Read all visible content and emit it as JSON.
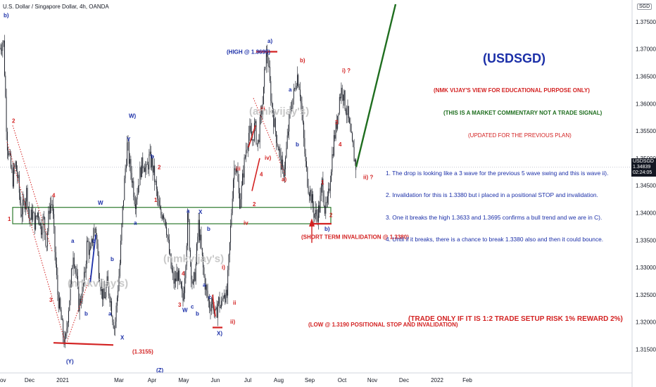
{
  "header": {
    "title": "U.S. Dollar / Singapore Dollar, 4h, OANDA",
    "currency_badge": "SGD"
  },
  "price_tag": {
    "symbol": "USDSGD",
    "price": "1.34839",
    "countdown": "02:24:05"
  },
  "colors": {
    "candles": "#131722",
    "blue": "#1b2fa8",
    "red": "#d32222",
    "green": "#1f6e1f",
    "box": "#2d7a2d",
    "grid": "#b8bcc8"
  },
  "chart_data": {
    "type": "candlestick",
    "y_ticks": [
      1.315,
      1.32,
      1.325,
      1.33,
      1.335,
      1.34,
      1.345,
      1.35,
      1.355,
      1.36,
      1.365,
      1.37,
      1.375
    ],
    "x_ticks": [
      "Dec",
      "2021",
      "Mar",
      "Apr",
      "May",
      "Jun",
      "Jul",
      "Aug",
      "Sep",
      "Oct",
      "Nov",
      "Dec",
      "2022",
      "Feb"
    ],
    "edge_tick": "ov",
    "ylim": [
      1.3112,
      1.3782
    ],
    "current_price": 1.34839,
    "invalidation_zone": [
      1.338,
      1.341
    ],
    "price_path": [
      [
        0,
        1.3702
      ],
      [
        5,
        1.3718
      ],
      [
        7,
        1.364
      ],
      [
        10,
        1.353
      ],
      [
        14,
        1.3495
      ],
      [
        18,
        1.346
      ],
      [
        22,
        1.349
      ],
      [
        26,
        1.3455
      ],
      [
        30,
        1.34
      ],
      [
        34,
        1.3415
      ],
      [
        38,
        1.344
      ],
      [
        42,
        1.3385
      ],
      [
        46,
        1.34
      ],
      [
        50,
        1.338
      ],
      [
        54,
        1.3405
      ],
      [
        58,
        1.337
      ],
      [
        62,
        1.339
      ],
      [
        66,
        1.334
      ],
      [
        70,
        1.341
      ],
      [
        74,
        1.342
      ],
      [
        78,
        1.333
      ],
      [
        82,
        1.325
      ],
      [
        86,
        1.3215
      ],
      [
        90,
        1.3172
      ],
      [
        93,
        1.3158
      ],
      [
        96,
        1.321
      ],
      [
        100,
        1.326
      ],
      [
        104,
        1.333
      ],
      [
        108,
        1.329
      ],
      [
        112,
        1.323
      ],
      [
        116,
        1.325
      ],
      [
        120,
        1.328
      ],
      [
        124,
        1.335
      ],
      [
        128,
        1.332
      ],
      [
        132,
        1.336
      ],
      [
        136,
        1.3375
      ],
      [
        140,
        1.33
      ],
      [
        144,
        1.326
      ],
      [
        148,
        1.324
      ],
      [
        152,
        1.327
      ],
      [
        156,
        1.325
      ],
      [
        160,
        1.321
      ],
      [
        163,
        1.3188
      ],
      [
        166,
        1.324
      ],
      [
        170,
        1.33
      ],
      [
        174,
        1.34
      ],
      [
        178,
        1.348
      ],
      [
        181,
        1.3527
      ],
      [
        184,
        1.349
      ],
      [
        188,
        1.346
      ],
      [
        192,
        1.342
      ],
      [
        196,
        1.345
      ],
      [
        200,
        1.348
      ],
      [
        204,
        1.3495
      ],
      [
        208,
        1.3475
      ],
      [
        212,
        1.35
      ],
      [
        216,
        1.349
      ],
      [
        220,
        1.346
      ],
      [
        224,
        1.342
      ],
      [
        228,
        1.3395
      ],
      [
        232,
        1.3405
      ],
      [
        236,
        1.338
      ],
      [
        240,
        1.333
      ],
      [
        244,
        1.329
      ],
      [
        248,
        1.327
      ],
      [
        252,
        1.329
      ],
      [
        256,
        1.326
      ],
      [
        260,
        1.324
      ],
      [
        264,
        1.332
      ],
      [
        267,
        1.34
      ],
      [
        270,
        1.332
      ],
      [
        274,
        1.326
      ],
      [
        278,
        1.33
      ],
      [
        282,
        1.338
      ],
      [
        286,
        1.333
      ],
      [
        290,
        1.328
      ],
      [
        294,
        1.325
      ],
      [
        298,
        1.323
      ],
      [
        302,
        1.324
      ],
      [
        306,
        1.3205
      ],
      [
        310,
        1.324
      ],
      [
        314,
        1.3225
      ],
      [
        318,
        1.326
      ],
      [
        322,
        1.324
      ],
      [
        325,
        1.331
      ],
      [
        328,
        1.338
      ],
      [
        331,
        1.346
      ],
      [
        334,
        1.3495
      ],
      [
        337,
        1.347
      ],
      [
        340,
        1.342
      ],
      [
        343,
        1.344
      ],
      [
        346,
        1.348
      ],
      [
        350,
        1.352
      ],
      [
        354,
        1.355
      ],
      [
        358,
        1.353
      ],
      [
        362,
        1.356
      ],
      [
        366,
        1.352
      ],
      [
        370,
        1.357
      ],
      [
        374,
        1.361
      ],
      [
        377,
        1.368
      ],
      [
        380,
        1.3692
      ],
      [
        383,
        1.364
      ],
      [
        386,
        1.36
      ],
      [
        390,
        1.356
      ],
      [
        394,
        1.353
      ],
      [
        398,
        1.35
      ],
      [
        402,
        1.347
      ],
      [
        406,
        1.35
      ],
      [
        410,
        1.356
      ],
      [
        414,
        1.36
      ],
      [
        418,
        1.362
      ],
      [
        422,
        1.3655
      ],
      [
        426,
        1.363
      ],
      [
        430,
        1.356
      ],
      [
        434,
        1.349
      ],
      [
        438,
        1.345
      ],
      [
        442,
        1.343
      ],
      [
        446,
        1.34
      ],
      [
        450,
        1.3395
      ],
      [
        454,
        1.341
      ],
      [
        458,
        1.346
      ],
      [
        462,
        1.34
      ],
      [
        466,
        1.342
      ],
      [
        470,
        1.348
      ],
      [
        474,
        1.353
      ],
      [
        478,
        1.356
      ],
      [
        482,
        1.361
      ],
      [
        486,
        1.363
      ],
      [
        490,
        1.36
      ],
      [
        494,
        1.358
      ],
      [
        498,
        1.354
      ],
      [
        502,
        1.351
      ],
      [
        506,
        1.3484
      ]
    ]
  },
  "wave_labels": [
    {
      "text": "b)",
      "color": "blue",
      "x": 5,
      "p": 1.3758
    },
    {
      "text": "2",
      "color": "red",
      "x": 17,
      "p": 1.3565
    },
    {
      "text": "1",
      "color": "red",
      "x": 11,
      "p": 1.3385
    },
    {
      "text": "4",
      "color": "red",
      "x": 74,
      "p": 1.3428
    },
    {
      "text": "3",
      "color": "red",
      "x": 70,
      "p": 1.3237
    },
    {
      "text": "W",
      "color": "blue",
      "x": 139,
      "p": 1.3415
    },
    {
      "text": "a",
      "color": "blue",
      "x": 101,
      "p": 1.3345
    },
    {
      "text": "b",
      "color": "blue",
      "x": 120,
      "p": 1.3212
    },
    {
      "text": "c",
      "color": "blue",
      "x": 131,
      "p": 1.3345
    },
    {
      "text": "b",
      "color": "blue",
      "x": 157,
      "p": 1.3312
    },
    {
      "text": "a",
      "color": "blue",
      "x": 154,
      "p": 1.3212
    },
    {
      "text": "X",
      "color": "blue",
      "x": 171,
      "p": 1.3168
    },
    {
      "text": "(Y)",
      "color": "blue",
      "x": 94,
      "p": 1.3124
    },
    {
      "text": "(1.3155)",
      "color": "red",
      "x": 188,
      "p": 1.3142
    },
    {
      "text": "(Z)",
      "color": "blue",
      "x": 222,
      "p": 1.3108
    },
    {
      "text": "W)",
      "color": "blue",
      "x": 183,
      "p": 1.3574
    },
    {
      "text": "Y",
      "color": "blue",
      "x": 180,
      "p": 1.3531
    },
    {
      "text": "b",
      "color": "blue",
      "x": 214,
      "p": 1.35
    },
    {
      "text": "2",
      "color": "red",
      "x": 224,
      "p": 1.348
    },
    {
      "text": "1",
      "color": "red",
      "x": 219,
      "p": 1.342
    },
    {
      "text": "a",
      "color": "blue",
      "x": 190,
      "p": 1.3378
    },
    {
      "text": "a",
      "color": "blue",
      "x": 265,
      "p": 1.34
    },
    {
      "text": "X",
      "color": "blue",
      "x": 282,
      "p": 1.3398
    },
    {
      "text": "b",
      "color": "blue",
      "x": 294,
      "p": 1.3367
    },
    {
      "text": "4",
      "color": "red",
      "x": 258,
      "p": 1.3285
    },
    {
      "text": "3",
      "color": "red",
      "x": 253,
      "p": 1.3228
    },
    {
      "text": "W",
      "color": "blue",
      "x": 259,
      "p": 1.3218
    },
    {
      "text": "c",
      "color": "blue",
      "x": 271,
      "p": 1.3225
    },
    {
      "text": "a",
      "color": "blue",
      "x": 288,
      "p": 1.3265
    },
    {
      "text": "b",
      "color": "blue",
      "x": 278,
      "p": 1.3212
    },
    {
      "text": "c",
      "color": "blue",
      "x": 296,
      "p": 1.3242
    },
    {
      "text": "X)",
      "color": "blue",
      "x": 308,
      "p": 1.3176
    },
    {
      "text": "ii)",
      "color": "red",
      "x": 327,
      "p": 1.3197
    },
    {
      "text": "ii",
      "color": "red",
      "x": 331,
      "p": 1.3232
    },
    {
      "text": "i)",
      "color": "red",
      "x": 315,
      "p": 1.3297
    },
    {
      "text": "iii",
      "color": "red",
      "x": 335,
      "p": 1.3477
    },
    {
      "text": "iv",
      "color": "red",
      "x": 346,
      "p": 1.3378
    },
    {
      "text": "2",
      "color": "red",
      "x": 359,
      "p": 1.3412
    },
    {
      "text": "4",
      "color": "red",
      "x": 369,
      "p": 1.3467
    },
    {
      "text": "iv)",
      "color": "red",
      "x": 376,
      "p": 1.3497
    },
    {
      "text": "iii",
      "color": "red",
      "x": 370,
      "p": 1.3587
    },
    {
      "text": "a)",
      "color": "blue",
      "x": 380,
      "p": 1.3711
    },
    {
      "text": "a",
      "color": "blue",
      "x": 410,
      "p": 1.3622
    },
    {
      "text": "b",
      "color": "blue",
      "x": 420,
      "p": 1.3522
    },
    {
      "text": "b)",
      "color": "red",
      "x": 426,
      "p": 1.3676
    },
    {
      "text": "a)",
      "color": "red",
      "x": 400,
      "p": 1.3458
    },
    {
      "text": "i) ?",
      "color": "red",
      "x": 486,
      "p": 1.3657
    },
    {
      "text": "3",
      "color": "red",
      "x": 476,
      "p": 1.3562
    },
    {
      "text": "4",
      "color": "red",
      "x": 481,
      "p": 1.3522
    },
    {
      "text": "1",
      "color": "red",
      "x": 456,
      "p": 1.3452
    },
    {
      "text": "2",
      "color": "red",
      "x": 468,
      "p": 1.3392
    },
    {
      "text": "b)",
      "color": "blue",
      "x": 461,
      "p": 1.3367
    },
    {
      "text": "ii) ?",
      "color": "red",
      "x": 516,
      "p": 1.3462
    },
    {
      "text": "(HIGH @ 1.3695)",
      "color": "blue",
      "x": 322,
      "p": 1.3691
    },
    {
      "text": "(SHORT TERM INVALIDATION @ 1.3380)",
      "color": "red",
      "x": 428,
      "p": 1.3352
    },
    {
      "text": "(LOW @ 1.3190 POSITIONAL STOP AND INVALIDATION)",
      "color": "red",
      "x": 438,
      "p": 1.3192
    }
  ],
  "watermarks": [
    "(amkvijay's)",
    "(nmkvijay's)",
    "(nmkvijay's)"
  ],
  "notes": {
    "symbol_title": "(USDSGD)",
    "disclaimer": "(NMK VIJAY'S VIEW FOR EDUCATIONAL PURPOSE ONLY)",
    "commentary": "(THIS IS A MARKET COMMENTARY NOT A TRADE SIGNAL)",
    "updated": "(UPDATED FOR THE PREVIOUS PLAN)",
    "point1": "1. The drop is looking like a 3 wave for the previous 5 wave swing and this is wave ii).",
    "point2": "2. Invalidation for this is 1.3380 but i placed in a positional STOP and invalidation.",
    "point3": "3. One it breaks the high 1.3633 and 1.3695 confirms a bull trend and we are in C).",
    "point4": "4. Until if it breaks, there is a chance to break 1.3380 also and then it could bounce.",
    "trade_rule": "(TRADE ONLY IF IT IS 1:2 TRADE SETUP RISK 1% REWARD 2%)"
  }
}
